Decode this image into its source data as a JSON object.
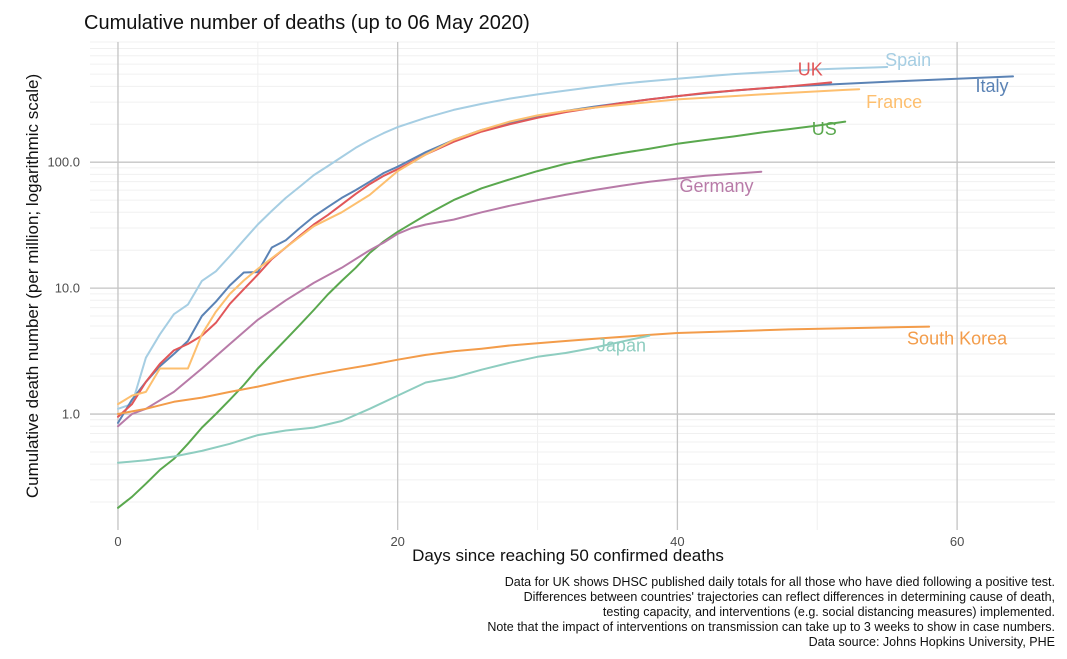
{
  "chart_data": {
    "type": "line",
    "title": "Cumulative number of deaths (up to 06 May 2020)",
    "xlabel": "Days since reaching 50 confirmed deaths",
    "ylabel": "Cumulative death number (per million; logarithmic scale)",
    "y_scale": "log10",
    "xlim": [
      -2,
      67
    ],
    "ylim": [
      0.12,
      900
    ],
    "x_ticks": [
      0,
      20,
      40,
      60
    ],
    "y_ticks": [
      {
        "value": 1,
        "label": "1.0"
      },
      {
        "value": 10,
        "label": "10.0"
      },
      {
        "value": 100,
        "label": "100.0"
      }
    ],
    "grid": true,
    "series": [
      {
        "name": "Spain",
        "label": "Spain",
        "color": "#a6cee3",
        "label_x": 56.5,
        "label_y": 580,
        "x": [
          0,
          1,
          2,
          3,
          4,
          5,
          6,
          7,
          8,
          9,
          10,
          11,
          12,
          13,
          14,
          15,
          16,
          17,
          18,
          19,
          20,
          22,
          24,
          26,
          28,
          30,
          32,
          34,
          36,
          38,
          40,
          42,
          44,
          46,
          48,
          50,
          52,
          54,
          55
        ],
        "y": [
          1.1,
          1.2,
          2.8,
          4.3,
          6.2,
          7.4,
          11.4,
          13.6,
          18,
          24,
          32,
          41,
          52,
          64,
          79,
          93,
          110,
          130,
          150,
          170,
          190,
          225,
          260,
          290,
          320,
          345,
          370,
          395,
          420,
          440,
          460,
          480,
          500,
          515,
          530,
          545,
          555,
          565,
          570
        ]
      },
      {
        "name": "Italy",
        "label": "Italy",
        "color": "#5b83b5",
        "label_x": 62.5,
        "label_y": 360,
        "x": [
          0,
          1,
          2,
          3,
          4,
          5,
          6,
          7,
          8,
          9,
          10,
          11,
          12,
          13,
          14,
          15,
          16,
          17,
          18,
          19,
          20,
          22,
          24,
          26,
          28,
          30,
          32,
          34,
          36,
          38,
          40,
          44,
          48,
          52,
          56,
          60,
          64
        ],
        "y": [
          0.85,
          1.3,
          1.8,
          2.4,
          3.0,
          3.8,
          6.0,
          7.8,
          10.5,
          13.3,
          13.4,
          21,
          24,
          30,
          37,
          44,
          52,
          60,
          70,
          82,
          92,
          120,
          150,
          180,
          205,
          230,
          255,
          275,
          295,
          315,
          335,
          370,
          400,
          420,
          440,
          460,
          480
        ]
      },
      {
        "name": "UK",
        "label": "UK",
        "color": "#e15759",
        "label_x": 49.5,
        "label_y": 490,
        "x": [
          0,
          1,
          2,
          3,
          4,
          5,
          6,
          7,
          8,
          9,
          10,
          11,
          12,
          13,
          14,
          15,
          16,
          17,
          18,
          19,
          20,
          22,
          24,
          26,
          28,
          30,
          32,
          34,
          36,
          38,
          40,
          42,
          44,
          46,
          48,
          50,
          51
        ],
        "y": [
          0.95,
          1.2,
          1.8,
          2.5,
          3.2,
          3.6,
          4.2,
          5.3,
          7.5,
          9.8,
          12.8,
          17,
          21,
          26,
          32,
          38,
          46,
          56,
          67,
          78,
          88,
          115,
          145,
          175,
          200,
          225,
          250,
          270,
          295,
          315,
          335,
          355,
          370,
          385,
          400,
          420,
          430
        ]
      },
      {
        "name": "France",
        "label": "France",
        "color": "#fdbf6f",
        "label_x": 55.5,
        "label_y": 270,
        "x": [
          0,
          1,
          2,
          3,
          4,
          5,
          6,
          7,
          8,
          9,
          10,
          12,
          14,
          16,
          18,
          20,
          22,
          24,
          26,
          28,
          30,
          32,
          34,
          36,
          38,
          40,
          42,
          44,
          46,
          48,
          50,
          52,
          53
        ],
        "y": [
          1.2,
          1.4,
          1.5,
          2.3,
          2.3,
          2.3,
          4.3,
          6.5,
          9.0,
          11.5,
          14.2,
          21,
          31,
          40,
          55,
          85,
          115,
          150,
          180,
          210,
          235,
          255,
          270,
          285,
          300,
          315,
          325,
          335,
          345,
          355,
          365,
          375,
          380
        ]
      },
      {
        "name": "US",
        "label": "US",
        "color": "#5aa84e",
        "label_x": 50.5,
        "label_y": 165,
        "x": [
          0,
          1,
          2,
          3,
          4,
          5,
          6,
          7,
          8,
          9,
          10,
          11,
          12,
          13,
          14,
          15,
          16,
          17,
          18,
          19,
          20,
          22,
          24,
          26,
          28,
          30,
          32,
          34,
          36,
          38,
          40,
          42,
          44,
          46,
          48,
          50,
          52
        ],
        "y": [
          0.18,
          0.22,
          0.28,
          0.36,
          0.44,
          0.58,
          0.78,
          1.0,
          1.3,
          1.7,
          2.3,
          3.0,
          3.9,
          5.1,
          6.7,
          8.9,
          11.4,
          14.5,
          19,
          23.5,
          28,
          38,
          50,
          62,
          73,
          85,
          97,
          108,
          118,
          128,
          140,
          150,
          160,
          172,
          183,
          195,
          210
        ]
      },
      {
        "name": "Germany",
        "label": "Germany",
        "color": "#b87ba8",
        "label_x": 42.8,
        "label_y": 58,
        "x": [
          0,
          1,
          2,
          4,
          6,
          8,
          10,
          12,
          14,
          16,
          18,
          19,
          20,
          21,
          22,
          24,
          26,
          28,
          30,
          32,
          34,
          36,
          38,
          40,
          42,
          44,
          46
        ],
        "y": [
          0.8,
          1.0,
          1.1,
          1.5,
          2.3,
          3.6,
          5.6,
          8.0,
          11,
          14.5,
          20,
          23,
          27,
          30,
          32,
          35,
          40,
          45,
          50,
          55,
          60,
          65,
          70,
          74,
          78,
          81,
          84
        ]
      },
      {
        "name": "South Korea",
        "label": "South Korea",
        "color": "#f39c4a",
        "label_x": 60.0,
        "label_y": 3.55,
        "x": [
          0,
          2,
          4,
          6,
          8,
          10,
          12,
          14,
          16,
          18,
          20,
          22,
          24,
          26,
          28,
          30,
          32,
          34,
          36,
          38,
          40,
          44,
          48,
          52,
          56,
          58
        ],
        "y": [
          1.0,
          1.1,
          1.25,
          1.35,
          1.5,
          1.65,
          1.85,
          2.05,
          2.25,
          2.45,
          2.7,
          2.95,
          3.15,
          3.3,
          3.5,
          3.65,
          3.8,
          3.95,
          4.1,
          4.25,
          4.4,
          4.55,
          4.7,
          4.8,
          4.9,
          4.95
        ]
      },
      {
        "name": "Japan",
        "label": "Japan",
        "color": "#8ecdc0",
        "label_x": 36.0,
        "label_y": 3.15,
        "x": [
          0,
          2,
          4,
          6,
          8,
          10,
          12,
          14,
          16,
          18,
          20,
          22,
          24,
          26,
          28,
          30,
          32,
          34,
          36,
          38
        ],
        "y": [
          0.41,
          0.43,
          0.46,
          0.51,
          0.58,
          0.68,
          0.74,
          0.78,
          0.88,
          1.1,
          1.4,
          1.78,
          1.95,
          2.25,
          2.55,
          2.85,
          3.05,
          3.35,
          3.75,
          4.2
        ]
      }
    ]
  },
  "caption_lines": [
    "Data for UK shows DHSC published daily totals for all those who have died following a positive test.",
    "Differences between countries' trajectories can reflect differences in determining cause of death,",
    "testing capacity, and interventions (e.g. social distancing measures) implemented.",
    "Note that the impact of interventions on transmission can take up to 3 weeks to show in case numbers.",
    "Data source: Johns Hopkins University, PHE"
  ]
}
